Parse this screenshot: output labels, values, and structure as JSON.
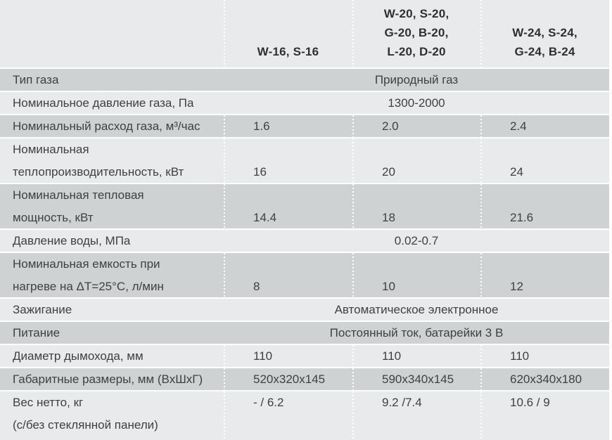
{
  "colors": {
    "page_bg": "#ffffff",
    "header_bg": "#e8eaeb",
    "row_light": "#e8eaeb",
    "row_dark": "#cfd2d3",
    "text": "#3e4143",
    "header_text": "#2e3032",
    "divider": "#ffffff"
  },
  "header": {
    "models": [
      {
        "lines": [
          "W-16, S-16"
        ]
      },
      {
        "lines": [
          "W-20, S-20,",
          "G-20, B-20,",
          "L-20, D-20"
        ]
      },
      {
        "lines": [
          "W-24, S-24,",
          "G-24, B-24"
        ]
      }
    ]
  },
  "rows": [
    {
      "label_lines": [
        "Тип газа"
      ],
      "span": "Природный газ"
    },
    {
      "label_lines": [
        "Номинальное давление газа, Па"
      ],
      "span": "1300-2000"
    },
    {
      "label_lines": [
        "Номинальный расход газа, м³/час"
      ],
      "values": [
        "1.6",
        "2.0",
        "2.4"
      ]
    },
    {
      "label_lines": [
        "Номинальная",
        "теплопроизводительность, кВт"
      ],
      "values": [
        "16",
        "20",
        "24"
      ]
    },
    {
      "label_lines": [
        "Номинальная тепловая",
        "мощность, кВт"
      ],
      "values": [
        "14.4",
        "18",
        "21.6"
      ]
    },
    {
      "label_lines": [
        "Давление воды, МПа"
      ],
      "span": "0.02-0.7"
    },
    {
      "label_lines": [
        "Номинальная емкость при",
        "нагреве на ΔT=25°C, л/мин"
      ],
      "values": [
        "8",
        "10",
        "12"
      ]
    },
    {
      "label_lines": [
        "Зажигание"
      ],
      "span": "Автоматическое электронное"
    },
    {
      "label_lines": [
        "Питание"
      ],
      "span": "Постоянный ток, батарейки 3 В"
    },
    {
      "label_lines": [
        "Диаметр дымохода, мм"
      ],
      "values": [
        "110",
        "110",
        "110"
      ]
    },
    {
      "label_lines": [
        "Габаритные размеры, мм (ВхШхГ)"
      ],
      "values": [
        "520x320x145",
        "590x340x145",
        "620x340x180"
      ]
    },
    {
      "label_lines": [
        "Вес нетто, кг",
        "(с/без стеклянной панели)"
      ],
      "values": [
        "- / 6.2",
        "9.2 /7.4",
        "10.6 / 9"
      ]
    }
  ]
}
